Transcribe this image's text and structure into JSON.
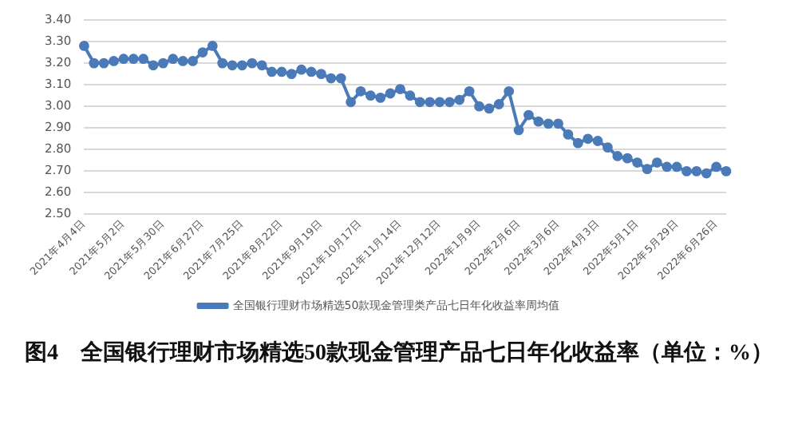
{
  "chart_data": {
    "type": "line",
    "title": "图4　全国银行理财市场精选50款现金管理产品七日年化收益率（单位：%）",
    "categories": [
      "2021年4月4日",
      null,
      null,
      null,
      "2021年5月2日",
      null,
      null,
      null,
      "2021年5月30日",
      null,
      null,
      null,
      "2021年6月27日",
      null,
      null,
      null,
      "2021年7月25日",
      null,
      null,
      null,
      "2021年8月22日",
      null,
      null,
      null,
      "2021年9月19日",
      null,
      null,
      null,
      "2021年10月17日",
      null,
      null,
      null,
      "2021年11月14日",
      null,
      null,
      null,
      "2021年12月12日",
      null,
      null,
      null,
      "2022年1月9日",
      null,
      null,
      null,
      "2022年2月6日",
      null,
      null,
      null,
      "2022年3月6日",
      null,
      null,
      null,
      "2022年4月3日",
      null,
      null,
      null,
      "2022年5月1日",
      null,
      null,
      null,
      "2022年5月29日",
      null,
      null,
      null,
      "2022年6月26日",
      null
    ],
    "series": [
      {
        "name": "全国银行理财市场精选50款现金管理类产品七日年化收益率周均值",
        "color": "#4a7ab8",
        "values": [
          3.28,
          3.2,
          3.2,
          3.21,
          3.22,
          3.22,
          3.22,
          3.19,
          3.2,
          3.22,
          3.21,
          3.21,
          3.25,
          3.28,
          3.2,
          3.19,
          3.19,
          3.2,
          3.19,
          3.16,
          3.16,
          3.15,
          3.17,
          3.16,
          3.15,
          3.13,
          3.13,
          3.02,
          3.07,
          3.05,
          3.04,
          3.06,
          3.08,
          3.05,
          3.02,
          3.02,
          3.02,
          3.02,
          3.03,
          3.07,
          3.0,
          2.99,
          3.01,
          3.07,
          2.89,
          2.96,
          2.93,
          2.92,
          2.92,
          2.87,
          2.83,
          2.85,
          2.84,
          2.81,
          2.77,
          2.76,
          2.74,
          2.71,
          2.74,
          2.72,
          2.72,
          2.7,
          2.7,
          2.69,
          2.72,
          2.7
        ]
      }
    ],
    "ylim": [
      2.5,
      3.4
    ],
    "yticks": [
      {
        "value": 2.5,
        "label": "2.50"
      },
      {
        "value": 2.6,
        "label": "2.60"
      },
      {
        "value": 2.7,
        "label": "2.70"
      },
      {
        "value": 2.8,
        "label": "2.80"
      },
      {
        "value": 2.9,
        "label": "2.90"
      },
      {
        "value": 3.0,
        "label": "3.00"
      },
      {
        "value": 3.1,
        "label": "3.10"
      },
      {
        "value": 3.2,
        "label": "3.20"
      },
      {
        "value": 3.3,
        "label": "3.30"
      },
      {
        "value": 3.4,
        "label": "3.40"
      }
    ],
    "grid": "y",
    "legend": "bottom",
    "marker": "circle",
    "line_style": "solid"
  }
}
